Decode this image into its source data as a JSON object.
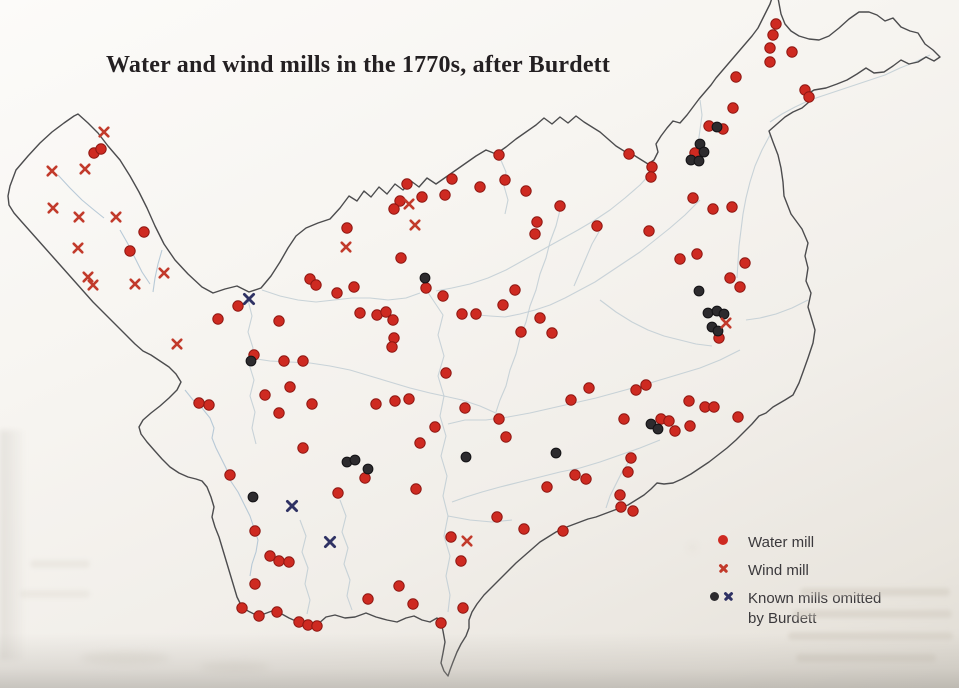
{
  "title": "Water and wind mills in the 1770s, after Burdett",
  "legend": {
    "water_mill_label": "Water mill",
    "wind_mill_label": "Wind mill",
    "omitted_label_line1": "Known mills omitted",
    "omitted_label_line2": "by Burdett"
  },
  "colors": {
    "water_mill": "#ce2a21",
    "water_mill_edge": "#8e1712",
    "wind_mill": "#c23a2b",
    "omitted_dot": "#2d2b2e",
    "omitted_dot_edge": "#131215",
    "omitted_cross": "#2f3264",
    "boundary": "#4c4c4e",
    "river": "#c0ccd3",
    "paper": "#f6f4f0"
  },
  "map": {
    "water_mills": [
      [
        776,
        24
      ],
      [
        773,
        35
      ],
      [
        770,
        48
      ],
      [
        792,
        52
      ],
      [
        770,
        62
      ],
      [
        736,
        77
      ],
      [
        805,
        90
      ],
      [
        809,
        97
      ],
      [
        733,
        108
      ],
      [
        709,
        126
      ],
      [
        723,
        129
      ],
      [
        695,
        153
      ],
      [
        652,
        167
      ],
      [
        651,
        177
      ],
      [
        693,
        198
      ],
      [
        499,
        155
      ],
      [
        629,
        154
      ],
      [
        452,
        179
      ],
      [
        505,
        180
      ],
      [
        407,
        184
      ],
      [
        480,
        187
      ],
      [
        526,
        191
      ],
      [
        445,
        195
      ],
      [
        422,
        197
      ],
      [
        400,
        201
      ],
      [
        394,
        209
      ],
      [
        560,
        206
      ],
      [
        537,
        222
      ],
      [
        535,
        234
      ],
      [
        597,
        226
      ],
      [
        649,
        231
      ],
      [
        347,
        228
      ],
      [
        401,
        258
      ],
      [
        426,
        288
      ],
      [
        443,
        296
      ],
      [
        310,
        279
      ],
      [
        316,
        285
      ],
      [
        337,
        293
      ],
      [
        354,
        287
      ],
      [
        515,
        290
      ],
      [
        503,
        305
      ],
      [
        360,
        313
      ],
      [
        377,
        315
      ],
      [
        386,
        312
      ],
      [
        393,
        320
      ],
      [
        394,
        338
      ],
      [
        392,
        347
      ],
      [
        462,
        314
      ],
      [
        476,
        314
      ],
      [
        540,
        318
      ],
      [
        521,
        332
      ],
      [
        552,
        333
      ],
      [
        713,
        209
      ],
      [
        732,
        207
      ],
      [
        680,
        259
      ],
      [
        697,
        254
      ],
      [
        745,
        263
      ],
      [
        730,
        278
      ],
      [
        740,
        287
      ],
      [
        719,
        338
      ],
      [
        94,
        153
      ],
      [
        101,
        149
      ],
      [
        144,
        232
      ],
      [
        130,
        251
      ],
      [
        238,
        306
      ],
      [
        218,
        319
      ],
      [
        279,
        321
      ],
      [
        254,
        355
      ],
      [
        284,
        361
      ],
      [
        303,
        361
      ],
      [
        290,
        387
      ],
      [
        265,
        395
      ],
      [
        199,
        403
      ],
      [
        209,
        405
      ],
      [
        312,
        404
      ],
      [
        279,
        413
      ],
      [
        230,
        475
      ],
      [
        446,
        373
      ],
      [
        376,
        404
      ],
      [
        395,
        401
      ],
      [
        409,
        399
      ],
      [
        465,
        408
      ],
      [
        435,
        427
      ],
      [
        420,
        443
      ],
      [
        303,
        448
      ],
      [
        365,
        478
      ],
      [
        338,
        493
      ],
      [
        416,
        489
      ],
      [
        589,
        388
      ],
      [
        571,
        400
      ],
      [
        499,
        419
      ],
      [
        506,
        437
      ],
      [
        624,
        419
      ],
      [
        636,
        390
      ],
      [
        646,
        385
      ],
      [
        689,
        401
      ],
      [
        705,
        407
      ],
      [
        714,
        407
      ],
      [
        661,
        419
      ],
      [
        669,
        421
      ],
      [
        675,
        431
      ],
      [
        690,
        426
      ],
      [
        738,
        417
      ],
      [
        631,
        458
      ],
      [
        628,
        472
      ],
      [
        575,
        475
      ],
      [
        586,
        479
      ],
      [
        547,
        487
      ],
      [
        620,
        495
      ],
      [
        621,
        507
      ],
      [
        633,
        511
      ],
      [
        497,
        517
      ],
      [
        524,
        529
      ],
      [
        563,
        531
      ],
      [
        451,
        537
      ],
      [
        461,
        561
      ],
      [
        463,
        608
      ],
      [
        441,
        623
      ],
      [
        413,
        604
      ],
      [
        399,
        586
      ],
      [
        368,
        599
      ],
      [
        255,
        531
      ],
      [
        270,
        556
      ],
      [
        279,
        561
      ],
      [
        289,
        562
      ],
      [
        255,
        584
      ],
      [
        242,
        608
      ],
      [
        259,
        616
      ],
      [
        277,
        612
      ],
      [
        299,
        622
      ],
      [
        308,
        625
      ],
      [
        317,
        626
      ]
    ],
    "wind_mills": [
      [
        104,
        132
      ],
      [
        85,
        169
      ],
      [
        52,
        171
      ],
      [
        53,
        208
      ],
      [
        79,
        217
      ],
      [
        116,
        217
      ],
      [
        78,
        248
      ],
      [
        164,
        273
      ],
      [
        88,
        277
      ],
      [
        93,
        285
      ],
      [
        135,
        284
      ],
      [
        409,
        204
      ],
      [
        415,
        225
      ],
      [
        346,
        247
      ],
      [
        177,
        344
      ],
      [
        726,
        323
      ],
      [
        467,
        541
      ]
    ],
    "omitted_mill_dots": [
      [
        717,
        127
      ],
      [
        700,
        144
      ],
      [
        704,
        152
      ],
      [
        691,
        160
      ],
      [
        699,
        161
      ],
      [
        425,
        278
      ],
      [
        251,
        361
      ],
      [
        699,
        291
      ],
      [
        708,
        313
      ],
      [
        717,
        311
      ],
      [
        724,
        314
      ],
      [
        712,
        327
      ],
      [
        718,
        331
      ],
      [
        651,
        424
      ],
      [
        658,
        429
      ],
      [
        466,
        457
      ],
      [
        556,
        453
      ],
      [
        347,
        462
      ],
      [
        355,
        460
      ],
      [
        368,
        469
      ],
      [
        253,
        497
      ]
    ],
    "omitted_mill_crosses": [
      [
        249,
        299
      ],
      [
        292,
        506
      ],
      [
        330,
        542
      ]
    ]
  }
}
